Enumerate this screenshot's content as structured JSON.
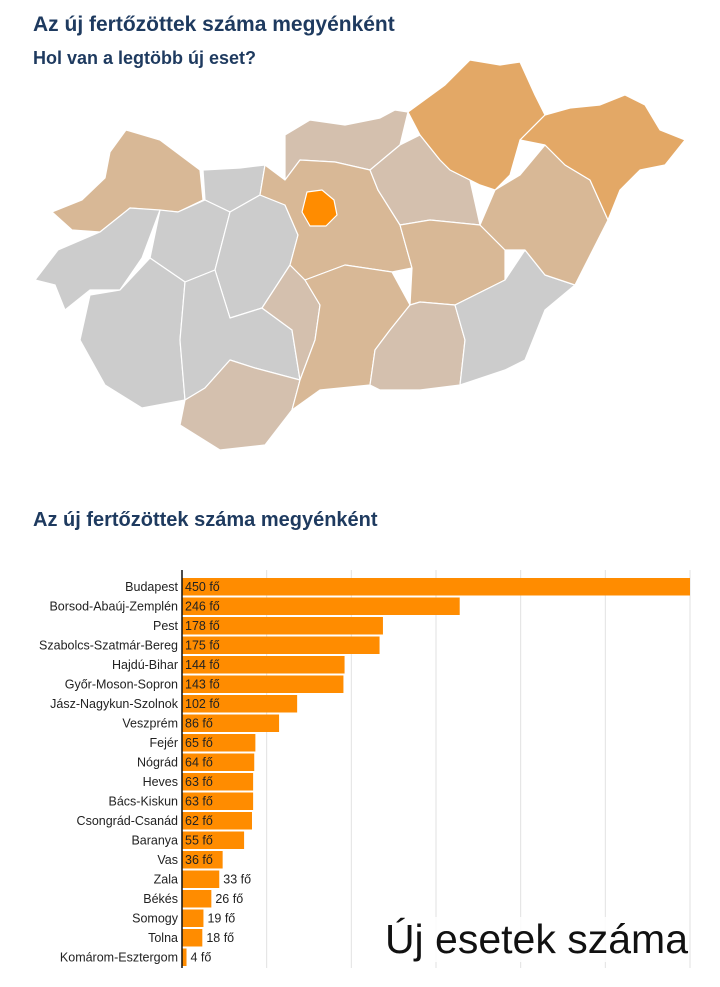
{
  "map": {
    "title": "Az új fertőzöttek száma megyénként",
    "subtitle": "Hol van a legtöbb új eset?",
    "colors": {
      "highest": "#ff8c00",
      "high": "#e3a866",
      "medium": "#d8b896",
      "low": "#d4c0ae",
      "none": "#cccccc",
      "border": "#ffffff"
    }
  },
  "chart_data": {
    "type": "bar",
    "orientation": "horizontal",
    "title": "Az új fertőzöttek száma megyénként",
    "annotation": "Új esetek száma",
    "bar_color": "#ff8c00",
    "grid": true,
    "xlim": [
      0,
      450
    ],
    "categories": [
      "Budapest",
      "Borsod-Abaúj-Zemplén",
      "Pest",
      "Szabolcs-Szatmár-Bereg",
      "Hajdú-Bihar",
      "Győr-Moson-Sopron",
      "Jász-Nagykun-Szolnok",
      "Veszprém",
      "Fejér",
      "Nógrád",
      "Heves",
      "Bács-Kiskun",
      "Csongrád-Csanád",
      "Baranya",
      "Vas",
      "Zala",
      "Békés",
      "Somogy",
      "Tolna",
      "Komárom-Esztergom"
    ],
    "values": [
      450,
      246,
      178,
      175,
      144,
      143,
      102,
      86,
      65,
      64,
      63,
      63,
      62,
      55,
      36,
      33,
      26,
      19,
      18,
      4
    ],
    "value_labels": [
      "450 fő",
      "246 fő",
      "178 fő",
      "175 fő",
      "144 fő",
      "143 fő",
      "102 fő",
      "86 fő",
      "65 fő",
      "64 fő",
      "63 fő",
      "63 fő",
      "62 fő",
      "55 fő",
      "36 fő",
      "33 fő",
      "26 fő",
      "19 fő",
      "18 fő",
      "4 fő"
    ]
  }
}
